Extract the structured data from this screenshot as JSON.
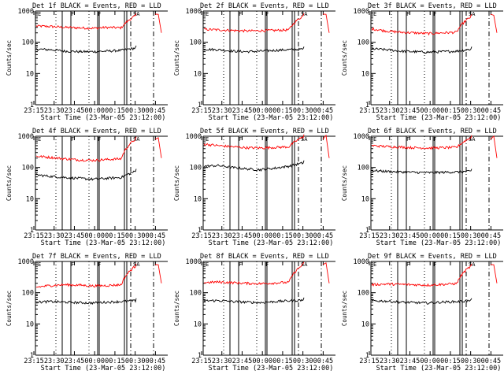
{
  "chart_data": [
    {
      "type": "line",
      "title": "Det 1f BLACK = Events, RED = LLD",
      "xlabel": "Start Time (23-Mar-05 23:12:00)",
      "ylabel": "Counts/sec",
      "yscale": "log",
      "ylim": [
        1,
        1000
      ],
      "xlim_minutes": [
        0,
        100
      ],
      "x_tick_labels": [
        "23:15",
        "23:30",
        "23:45",
        "00:00",
        "00:15",
        "00:30",
        "00:45"
      ],
      "y_tick_labels": [
        "1",
        "10",
        "100",
        "1000"
      ],
      "flags": [
        "E",
        "F",
        "F",
        "SA"
      ],
      "series": [
        {
          "color": "#ff0000",
          "values": [
            330,
            320,
            300,
            290,
            280,
            300,
            290,
            700
          ]
        },
        {
          "color": "#000000",
          "values": [
            60,
            58,
            52,
            50,
            50,
            52,
            55,
            65
          ]
        }
      ]
    },
    {
      "type": "line",
      "title": "Det 2f BLACK = Events, RED = LLD",
      "xlabel": "Start Time (23-Mar-05 23:12:00)",
      "ylabel": "Counts/sec",
      "yscale": "log",
      "ylim": [
        1,
        1000
      ],
      "xlim_minutes": [
        0,
        100
      ],
      "x_tick_labels": [
        "23:15",
        "23:30",
        "23:45",
        "00:00",
        "00:15",
        "00:30",
        "00:45"
      ],
      "y_tick_labels": [
        "1",
        "10",
        "100",
        "1000"
      ],
      "flags": [
        "E",
        "F",
        "F",
        "SA"
      ],
      "series": [
        {
          "color": "#ff0000",
          "values": [
            260,
            250,
            240,
            230,
            235,
            240,
            250,
            700
          ]
        },
        {
          "color": "#000000",
          "values": [
            60,
            58,
            52,
            50,
            52,
            55,
            58,
            60
          ]
        }
      ]
    },
    {
      "type": "line",
      "title": "Det 3f BLACK = Events, RED = LLD",
      "xlabel": "Start Time (23-Mar-05 23:12:00)",
      "ylabel": "Counts/sec",
      "yscale": "log",
      "ylim": [
        1,
        1000
      ],
      "xlim_minutes": [
        0,
        100
      ],
      "x_tick_labels": [
        "23:15",
        "23:30",
        "23:45",
        "00:00",
        "00:15",
        "00:30",
        "00:45"
      ],
      "y_tick_labels": [
        "1",
        "10",
        "100",
        "1000"
      ],
      "flags": [
        "E",
        "F",
        "F",
        "SA"
      ],
      "series": [
        {
          "color": "#ff0000",
          "values": [
            270,
            230,
            210,
            200,
            190,
            200,
            210,
            650
          ]
        },
        {
          "color": "#000000",
          "values": [
            62,
            58,
            52,
            50,
            48,
            50,
            52,
            60
          ]
        }
      ]
    },
    {
      "type": "line",
      "title": "Det 4f BLACK = Events, RED = LLD",
      "xlabel": "Start Time (23-Mar-05 23:12:00)",
      "ylabel": "Counts/sec",
      "yscale": "log",
      "ylim": [
        1,
        1000
      ],
      "xlim_minutes": [
        0,
        100
      ],
      "x_tick_labels": [
        "23:15",
        "23:30",
        "23:45",
        "00:00",
        "00:15",
        "00:30",
        "00:45"
      ],
      "y_tick_labels": [
        "1",
        "10",
        "100",
        "1000"
      ],
      "flags": [
        "E",
        "F",
        "F",
        "SA"
      ],
      "series": [
        {
          "color": "#ff0000",
          "values": [
            230,
            210,
            190,
            175,
            170,
            180,
            190,
            800
          ]
        },
        {
          "color": "#000000",
          "values": [
            58,
            52,
            48,
            45,
            42,
            45,
            48,
            75
          ]
        }
      ]
    },
    {
      "type": "line",
      "title": "Det 5f BLACK = Events, RED = LLD",
      "xlabel": "Start Time (23-Mar-05 23:12:00)",
      "ylabel": "Counts/sec",
      "yscale": "log",
      "ylim": [
        1,
        1000
      ],
      "xlim_minutes": [
        0,
        100
      ],
      "x_tick_labels": [
        "23:15",
        "23:30",
        "23:45",
        "00:00",
        "00:15",
        "00:30",
        "00:45"
      ],
      "y_tick_labels": [
        "1",
        "10",
        "100",
        "1000"
      ],
      "flags": [
        "E",
        "F",
        "F",
        "SA"
      ],
      "series": [
        {
          "color": "#ff0000",
          "values": [
            560,
            500,
            460,
            430,
            420,
            440,
            460,
            950
          ]
        },
        {
          "color": "#000000",
          "values": [
            110,
            115,
            100,
            90,
            85,
            95,
            110,
            140
          ]
        }
      ]
    },
    {
      "type": "line",
      "title": "Det 6f BLACK = Events, RED = LLD",
      "xlabel": "Start Time (23-Mar-05 23:12:00)",
      "ylabel": "Counts/sec",
      "yscale": "log",
      "ylim": [
        1,
        1000
      ],
      "xlim_minutes": [
        0,
        100
      ],
      "x_tick_labels": [
        "23:15",
        "23:30",
        "23:45",
        "00:00",
        "00:15",
        "00:30",
        "00:45"
      ],
      "y_tick_labels": [
        "1",
        "10",
        "100",
        "1000"
      ],
      "flags": [
        "E",
        "F",
        "F",
        "SA"
      ],
      "series": [
        {
          "color": "#ff0000",
          "values": [
            500,
            470,
            450,
            430,
            420,
            430,
            440,
            900
          ]
        },
        {
          "color": "#000000",
          "values": [
            80,
            75,
            72,
            70,
            68,
            70,
            72,
            75
          ]
        }
      ]
    },
    {
      "type": "line",
      "title": "Det 7f BLACK = Events, RED = LLD",
      "xlabel": "Start Time (23-Mar-05 23:12:00)",
      "ylabel": "Counts/sec",
      "yscale": "log",
      "ylim": [
        1,
        1000
      ],
      "xlim_minutes": [
        0,
        100
      ],
      "x_tick_labels": [
        "23:15",
        "23:30",
        "23:45",
        "00:00",
        "00:15",
        "00:30",
        "00:45"
      ],
      "y_tick_labels": [
        "1",
        "10",
        "100",
        "1000"
      ],
      "flags": [
        "E",
        "F",
        "F",
        "SA"
      ],
      "series": [
        {
          "color": "#ff0000",
          "values": [
            150,
            170,
            180,
            175,
            165,
            170,
            180,
            700
          ]
        },
        {
          "color": "#000000",
          "values": [
            50,
            52,
            50,
            48,
            47,
            50,
            52,
            55
          ]
        }
      ]
    },
    {
      "type": "line",
      "title": "Det 8f BLACK = Events, RED = LLD",
      "xlabel": "Start Time (23-Mar-05 23:12:00)",
      "ylabel": "Counts/sec",
      "yscale": "log",
      "ylim": [
        1,
        1000
      ],
      "xlim_minutes": [
        0,
        100
      ],
      "x_tick_labels": [
        "23:15",
        "23:30",
        "23:45",
        "00:00",
        "00:15",
        "00:30",
        "00:45"
      ],
      "y_tick_labels": [
        "1",
        "10",
        "100",
        "1000"
      ],
      "flags": [
        "E",
        "F",
        "F",
        "SA"
      ],
      "series": [
        {
          "color": "#ff0000",
          "values": [
            210,
            220,
            210,
            200,
            195,
            205,
            215,
            800
          ]
        },
        {
          "color": "#000000",
          "values": [
            55,
            56,
            52,
            50,
            48,
            52,
            55,
            58
          ]
        }
      ]
    },
    {
      "type": "line",
      "title": "Det 9f BLACK = Events, RED = LLD",
      "xlabel": "Start Time (23-Mar-05 23:12:00)",
      "ylabel": "Counts/sec",
      "yscale": "log",
      "ylim": [
        1,
        1000
      ],
      "xlim_minutes": [
        0,
        100
      ],
      "x_tick_labels": [
        "23:15",
        "23:30",
        "23:45",
        "00:00",
        "00:15",
        "00:30",
        "00:45"
      ],
      "y_tick_labels": [
        "1",
        "10",
        "100",
        "1000"
      ],
      "flags": [
        "E",
        "F",
        "F",
        "SA"
      ],
      "series": [
        {
          "color": "#ff0000",
          "values": [
            180,
            190,
            185,
            180,
            175,
            185,
            195,
            700
          ]
        },
        {
          "color": "#000000",
          "values": [
            55,
            54,
            50,
            48,
            47,
            50,
            52,
            55
          ]
        }
      ]
    }
  ]
}
